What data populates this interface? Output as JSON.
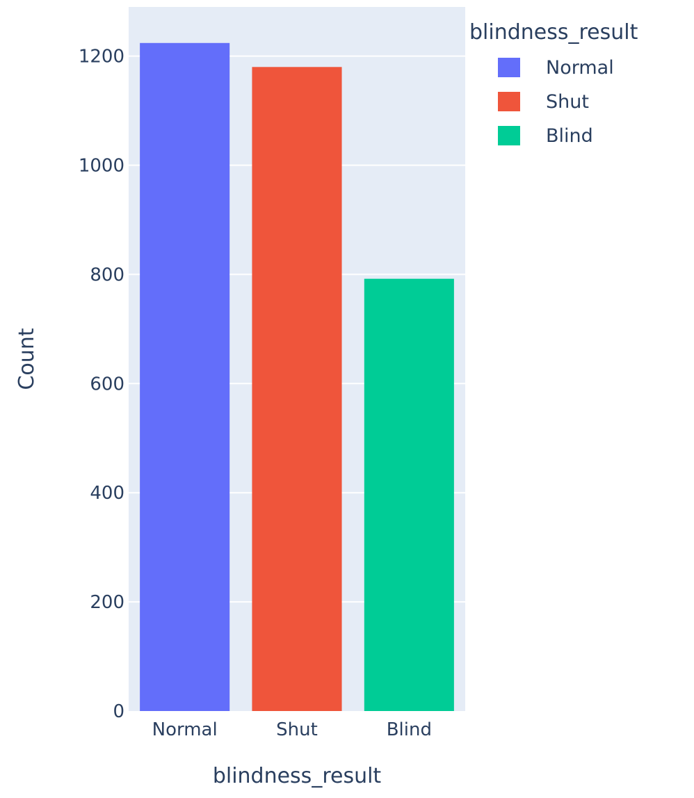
{
  "chart_data": {
    "type": "bar",
    "title": "",
    "xlabel": "blindness_result",
    "ylabel": "Count",
    "categories": [
      "Normal",
      "Shut",
      "Blind"
    ],
    "values": [
      1224,
      1180,
      792
    ],
    "ylim": [
      0,
      1290
    ],
    "yticks": [
      0,
      200,
      400,
      600,
      800,
      1000,
      1200
    ],
    "grid": true,
    "legend": {
      "title": "blindness_result",
      "position": "right",
      "entries": [
        "Normal",
        "Shut",
        "Blind"
      ]
    },
    "colors": {
      "Normal": "#636efa",
      "Shut": "#ef553b",
      "Blind": "#00cc96",
      "plot_background": "#e5ecf6",
      "gridline": "#ffffff",
      "text": "#2a3f5f"
    }
  }
}
